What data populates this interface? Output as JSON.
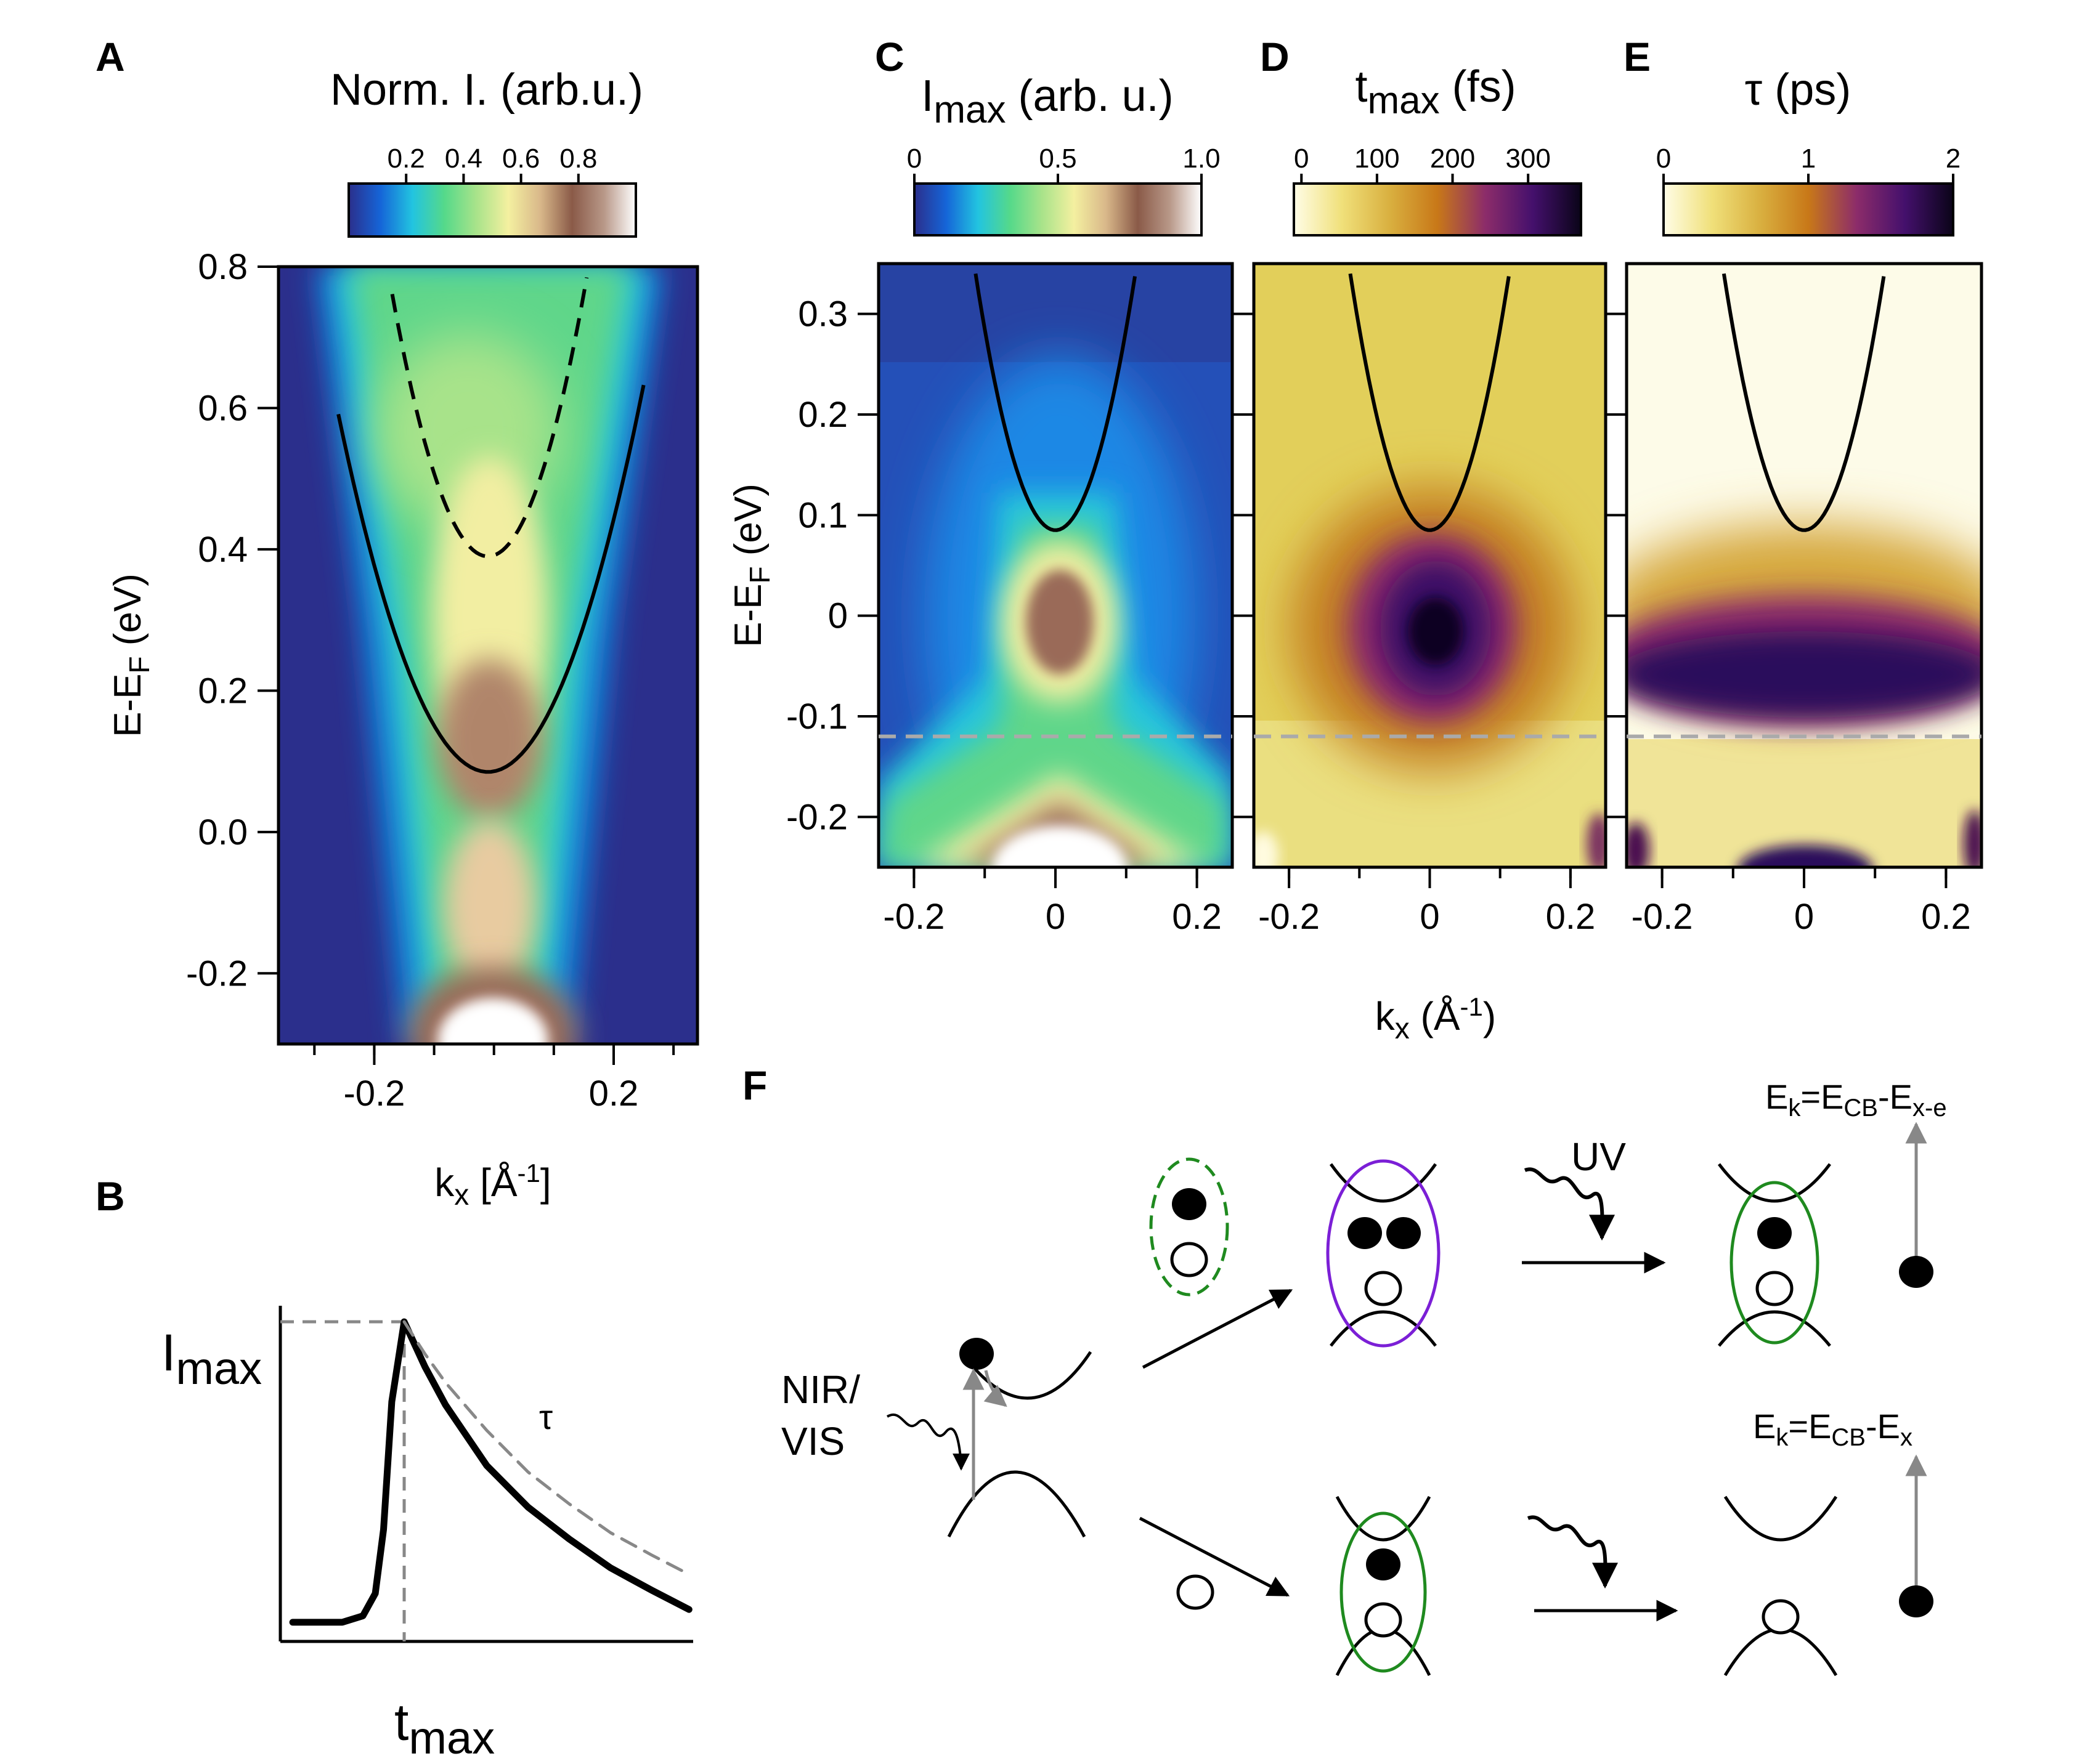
{
  "panel_labels": {
    "a": "A",
    "b": "B",
    "c": "C",
    "d": "D",
    "e": "E",
    "f": "F"
  },
  "colors": {
    "cmap_a": [
      "#2b2f8c",
      "#1565d8",
      "#22c4e0",
      "#55d98a",
      "#a8e38a",
      "#f4f0a0",
      "#d9b88a",
      "#8a5a48",
      "#b89888",
      "#ffffff"
    ],
    "cmap_d": [
      "#fffde6",
      "#f0e07a",
      "#d9b040",
      "#c87818",
      "#8c2c6a",
      "#44106c",
      "#0a0418"
    ],
    "violet_ellipse": "#7b1fd6",
    "green_ellipse": "#1f8a1f",
    "dashed_gray": "#aaaaaa",
    "arrow_gray": "#888888"
  },
  "chart_data": [
    {
      "id": "A",
      "type": "heatmap",
      "title": "Norm. I. (arb.u.)",
      "xlabel_base": "k",
      "xlabel_sub": "x",
      "xlabel_unit": " [Å",
      "xlabel_sup": "-1",
      "xlabel_close": "]",
      "ylabel_base": "E-E",
      "ylabel_sub": "F",
      "ylabel_unit": " (eV)",
      "xlim": [
        -0.36,
        0.34
      ],
      "ylim": [
        -0.3,
        0.8
      ],
      "x_ticks": [
        -0.2,
        0.2
      ],
      "x_tick_labels": [
        "-0.2",
        "0.2"
      ],
      "y_ticks": [
        -0.2,
        0.0,
        0.2,
        0.4,
        0.6,
        0.8
      ],
      "y_tick_labels": [
        "-0.2",
        "0.0",
        "0.2",
        "0.4",
        "0.6",
        "0.8"
      ],
      "colorbar_range": [
        0.0,
        1.0
      ],
      "colorbar_ticks": [
        0.2,
        0.4,
        0.6,
        0.8
      ],
      "colorbar_labels": [
        "0.2",
        "0.4",
        "0.6",
        "0.8"
      ],
      "bands": [
        {
          "name": "conduction band",
          "style": "solid",
          "k0": -0.01,
          "e0": 0.085,
          "curv": 8.1,
          "krange": [
            -0.26,
            0.25
          ]
        },
        {
          "name": "dashed band",
          "style": "dashed",
          "k0": -0.01,
          "e0": 0.39,
          "curv": 14.5,
          "krange": [
            -0.17,
            0.155
          ]
        }
      ]
    },
    {
      "id": "C",
      "type": "heatmap",
      "title_main": "I",
      "title_sub": "max",
      "title_unit": " (arb. u.)",
      "xlim": [
        -0.25,
        0.25
      ],
      "ylim": [
        -0.25,
        0.35
      ],
      "x_ticks": [
        -0.2,
        0,
        0.2
      ],
      "x_tick_labels": [
        "-0.2",
        "0",
        "0.2"
      ],
      "y_ticks": [
        -0.2,
        -0.1,
        0,
        0.1,
        0.2,
        0.3
      ],
      "y_tick_labels": [
        "-0.2",
        "-0.1",
        "0",
        "0.1",
        "0.2",
        "0.3"
      ],
      "colorbar_range": [
        0,
        1.0
      ],
      "colorbar_ticks": [
        0,
        0.5,
        1.0
      ],
      "colorbar_labels": [
        "0",
        "0.5",
        "1.0"
      ],
      "band": {
        "k0": 0.0,
        "e0": 0.085,
        "curv": 20.0,
        "krange": [
          -0.135,
          0.13
        ]
      },
      "dashed_line_energy": -0.12
    },
    {
      "id": "D",
      "type": "heatmap",
      "title_main": "t",
      "title_sub": "max",
      "title_unit": " (fs)",
      "xlim": [
        -0.25,
        0.25
      ],
      "ylim": [
        -0.25,
        0.35
      ],
      "x_ticks": [
        -0.2,
        0,
        0.2
      ],
      "x_tick_labels": [
        "-0.2",
        "0",
        "0.2"
      ],
      "colorbar_range": [
        -10,
        370
      ],
      "colorbar_ticks": [
        0,
        100,
        200,
        300
      ],
      "colorbar_labels": [
        "0",
        "100",
        "200",
        "300"
      ],
      "band": {
        "k0": 0.0,
        "e0": 0.085,
        "curv": 20.0,
        "krange": [
          -0.135,
          0.13
        ]
      },
      "dashed_line_energy": -0.12
    },
    {
      "id": "E",
      "type": "heatmap",
      "title_main": "τ (ps)",
      "xlim": [
        -0.25,
        0.25
      ],
      "ylim": [
        -0.25,
        0.35
      ],
      "x_ticks": [
        -0.2,
        0,
        0.2
      ],
      "x_tick_labels": [
        "-0.2",
        "0",
        "0.2"
      ],
      "colorbar_range": [
        0,
        2
      ],
      "colorbar_ticks": [
        0,
        1,
        2
      ],
      "colorbar_labels": [
        "0",
        "1",
        "2"
      ],
      "band": {
        "k0": 0.0,
        "e0": 0.085,
        "curv": 20.0,
        "krange": [
          -0.135,
          0.13
        ]
      },
      "dashed_line_energy": -0.12
    },
    {
      "id": "CDE_axes",
      "ylabel_base": "E-E",
      "ylabel_sub": "F",
      "ylabel_unit": " (eV)",
      "xlabel_base": "k",
      "xlabel_sub": "x",
      "xlabel_unit": " (Å",
      "xlabel_sup": "-1",
      "xlabel_close": ")"
    },
    {
      "id": "B",
      "type": "line",
      "ylabel_main": "I",
      "ylabel_sub": "max",
      "xlabel_main": "t",
      "xlabel_sub": "max",
      "tau_label": "τ",
      "xlim": [
        0,
        10
      ],
      "ylim": [
        0,
        1.05
      ],
      "peak_t": 3.0,
      "series": [
        {
          "name": "transient",
          "style": "solid",
          "x": [
            0.3,
            1.5,
            2.0,
            2.3,
            2.5,
            2.7,
            3.0,
            3.5,
            4.0,
            5.0,
            6.0,
            7.0,
            8.0,
            9.0,
            9.9
          ],
          "y": [
            0.06,
            0.06,
            0.08,
            0.15,
            0.35,
            0.75,
            1.0,
            0.86,
            0.74,
            0.55,
            0.42,
            0.32,
            0.23,
            0.16,
            0.1
          ]
        },
        {
          "name": "exponential fit",
          "style": "dashed",
          "x": [
            3.0,
            3.5,
            4.0,
            5.0,
            6.0,
            7.0,
            8.0,
            9.0,
            9.9
          ],
          "y": [
            1.0,
            0.9,
            0.81,
            0.66,
            0.53,
            0.43,
            0.34,
            0.27,
            0.21
          ]
        }
      ]
    }
  ],
  "schematic": {
    "nir_label_1": "NIR/",
    "nir_label_2": "VIS",
    "uv_label": "UV",
    "top_formula": {
      "a": "E",
      "a_sub": "k",
      "b": "=E",
      "b_sub": "CB",
      "c": "-E",
      "c_sub": "x-e"
    },
    "bottom_formula": {
      "a": "E",
      "a_sub": "k",
      "b": "=E",
      "b_sub": "CB",
      "c": "-E",
      "c_sub": "x"
    }
  }
}
